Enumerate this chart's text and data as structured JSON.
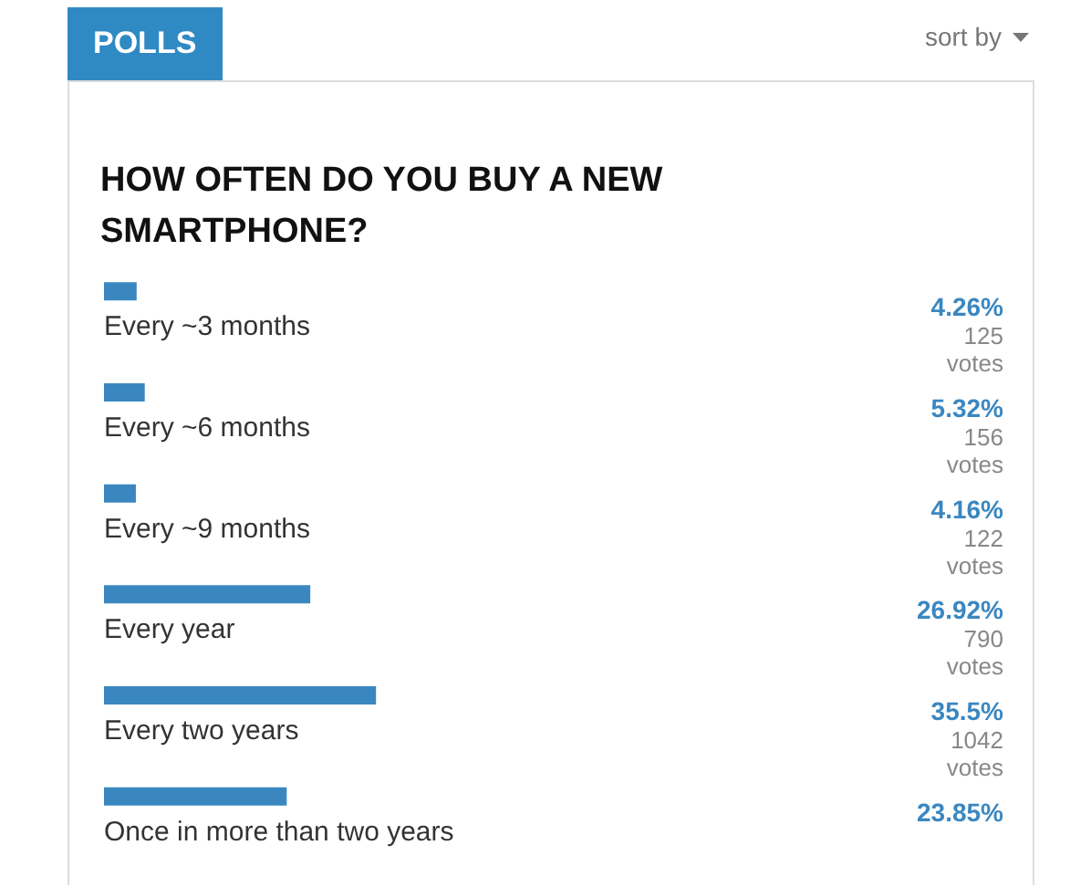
{
  "chart_data": {
    "type": "bar",
    "orientation": "horizontal",
    "title": "HOW OFTEN DO YOU BUY A NEW SMARTPHONE?",
    "subtitle": "POLLS",
    "annotations": [
      "sort by"
    ],
    "categories": [
      "Every ~3 months",
      "Every ~6 months",
      "Every ~9 months",
      "Every year",
      "Every two years",
      "Once in more than two years"
    ],
    "values": [
      4.26,
      5.32,
      4.16,
      26.92,
      35.5,
      23.85
    ],
    "value_labels": [
      "4.26%\n125\nvotes",
      "5.32%\n156\nvotes",
      "4.16%\n122\nvotes",
      "26.92%\n790\nvotes",
      "35.5%\n1042\nvotes",
      "23.85%"
    ],
    "color": "#3a87c0",
    "tick_labels": false
  }
}
